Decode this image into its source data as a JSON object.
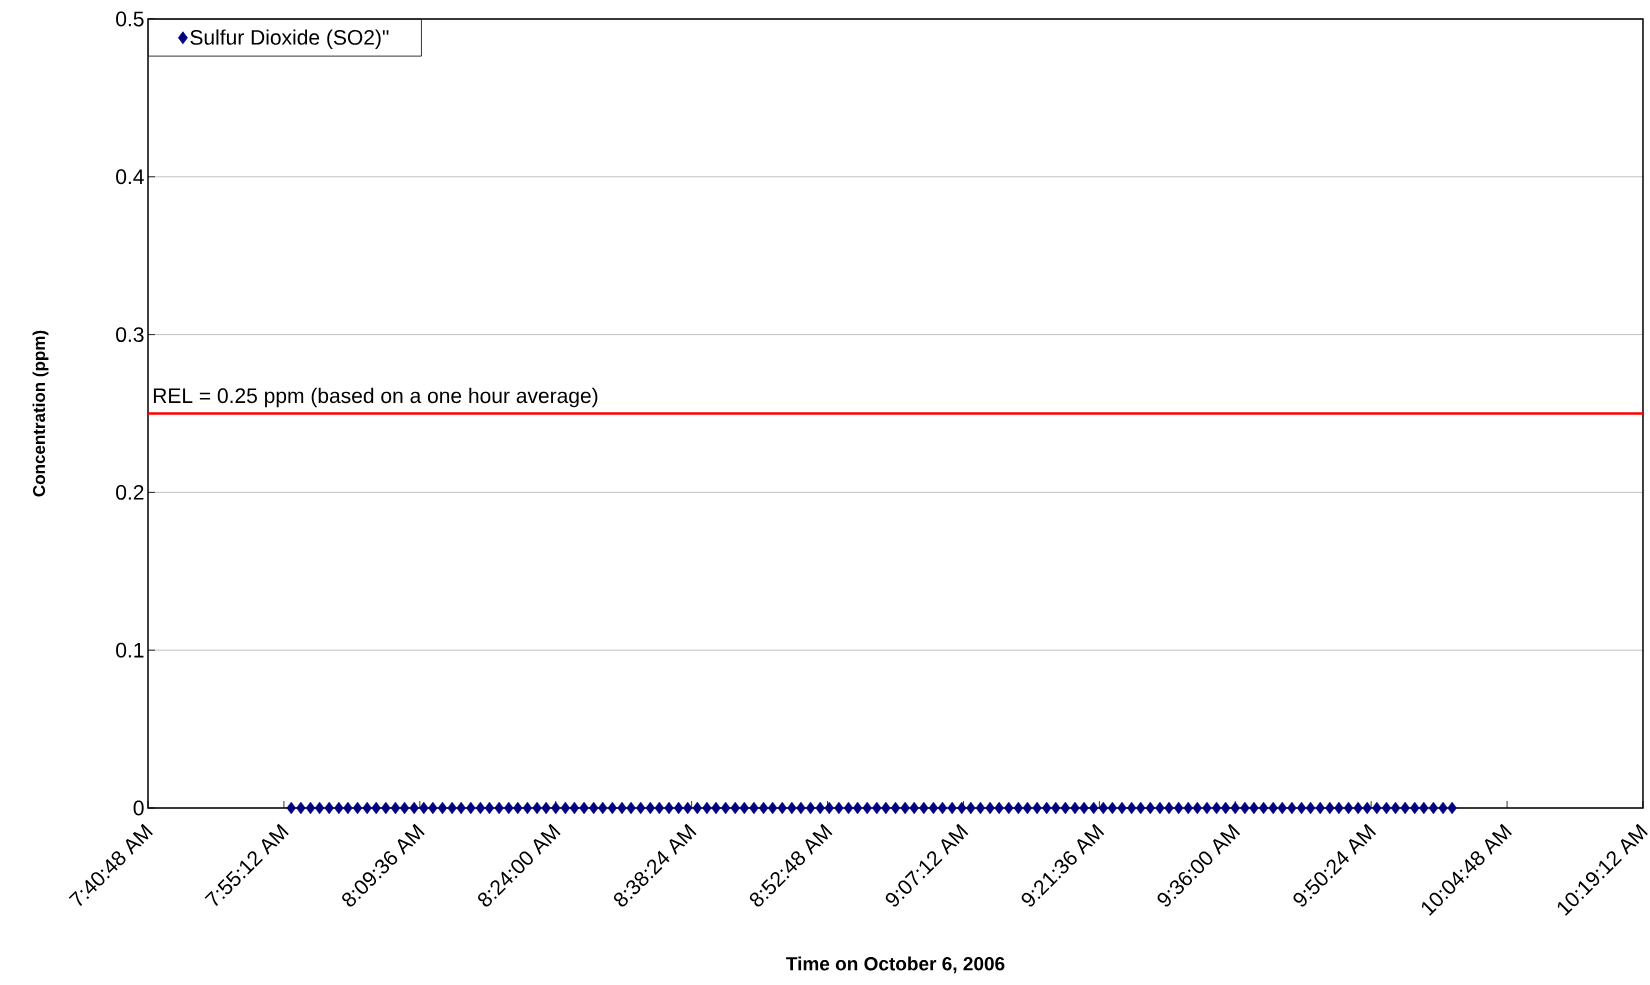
{
  "chart_data": {
    "type": "scatter",
    "xlabel": "Time on October 6, 2006",
    "ylabel": "Concentration (ppm)",
    "xlim": [
      7.68,
      10.32
    ],
    "ylim": [
      0,
      0.5
    ],
    "xticks": [
      {
        "value": 7.68,
        "label": "7:40:48 AM"
      },
      {
        "value": 7.92,
        "label": "7:55:12 AM"
      },
      {
        "value": 8.16,
        "label": "8:09:36 AM"
      },
      {
        "value": 8.4,
        "label": "8:24:00 AM"
      },
      {
        "value": 8.64,
        "label": "8:38:24 AM"
      },
      {
        "value": 8.88,
        "label": "8:52:48 AM"
      },
      {
        "value": 9.12,
        "label": "9:07:12 AM"
      },
      {
        "value": 9.36,
        "label": "9:21:36 AM"
      },
      {
        "value": 9.6,
        "label": "9:36:00 AM"
      },
      {
        "value": 9.84,
        "label": "9:50:24 AM"
      },
      {
        "value": 10.08,
        "label": "10:04:48 AM"
      },
      {
        "value": 10.32,
        "label": "10:19:12 AM"
      }
    ],
    "yticks": [
      0,
      0.1,
      0.2,
      0.3,
      0.4,
      0.5
    ],
    "grid": "y",
    "legend": "top left",
    "marker": "diamond",
    "ref_lines": [
      {
        "axis": "y",
        "value": 0.25,
        "label": "REL = 0.25 ppm (based on a one hour average)",
        "color": "#ff0000"
      }
    ],
    "series": [
      {
        "name": "Sulfur Dioxide (SO2)\"",
        "color": "#000080",
        "x": [
          7.933,
          7.95,
          7.967,
          7.983,
          8.0,
          8.017,
          8.033,
          8.05,
          8.067,
          8.083,
          8.1,
          8.117,
          8.133,
          8.15,
          8.167,
          8.183,
          8.2,
          8.217,
          8.233,
          8.25,
          8.267,
          8.283,
          8.3,
          8.317,
          8.333,
          8.35,
          8.367,
          8.383,
          8.4,
          8.417,
          8.433,
          8.45,
          8.467,
          8.483,
          8.5,
          8.517,
          8.533,
          8.55,
          8.567,
          8.583,
          8.6,
          8.617,
          8.633,
          8.65,
          8.667,
          8.683,
          8.7,
          8.717,
          8.733,
          8.75,
          8.767,
          8.783,
          8.8,
          8.817,
          8.833,
          8.85,
          8.867,
          8.883,
          8.9,
          8.917,
          8.933,
          8.95,
          8.967,
          8.983,
          9.0,
          9.017,
          9.033,
          9.05,
          9.067,
          9.083,
          9.1,
          9.117,
          9.133,
          9.15,
          9.167,
          9.183,
          9.2,
          9.217,
          9.233,
          9.25,
          9.267,
          9.283,
          9.3,
          9.317,
          9.333,
          9.35,
          9.367,
          9.383,
          9.4,
          9.417,
          9.433,
          9.45,
          9.467,
          9.483,
          9.5,
          9.517,
          9.533,
          9.55,
          9.567,
          9.583,
          9.6,
          9.617,
          9.633,
          9.65,
          9.667,
          9.683,
          9.7,
          9.717,
          9.733,
          9.75,
          9.767,
          9.783,
          9.8,
          9.817,
          9.833,
          9.85,
          9.867,
          9.883,
          9.9,
          9.917,
          9.933,
          9.95,
          9.967,
          9.983
        ],
        "values": [
          0,
          0,
          0,
          0,
          0,
          0,
          0,
          0,
          0,
          0,
          0,
          0,
          0,
          0,
          0,
          0,
          0,
          0,
          0,
          0,
          0,
          0,
          0,
          0,
          0,
          0,
          0,
          0,
          0,
          0,
          0,
          0,
          0,
          0,
          0,
          0,
          0,
          0,
          0,
          0,
          0,
          0,
          0,
          0,
          0,
          0,
          0,
          0,
          0,
          0,
          0,
          0,
          0,
          0,
          0,
          0,
          0,
          0,
          0,
          0,
          0,
          0,
          0,
          0,
          0,
          0,
          0,
          0,
          0,
          0,
          0,
          0,
          0,
          0,
          0,
          0,
          0,
          0,
          0,
          0,
          0,
          0,
          0,
          0,
          0,
          0,
          0,
          0,
          0,
          0,
          0,
          0,
          0,
          0,
          0,
          0,
          0,
          0,
          0,
          0,
          0,
          0,
          0,
          0,
          0,
          0,
          0,
          0,
          0,
          0,
          0,
          0,
          0,
          0,
          0,
          0,
          0,
          0,
          0,
          0,
          0,
          0,
          0,
          0
        ]
      }
    ]
  }
}
